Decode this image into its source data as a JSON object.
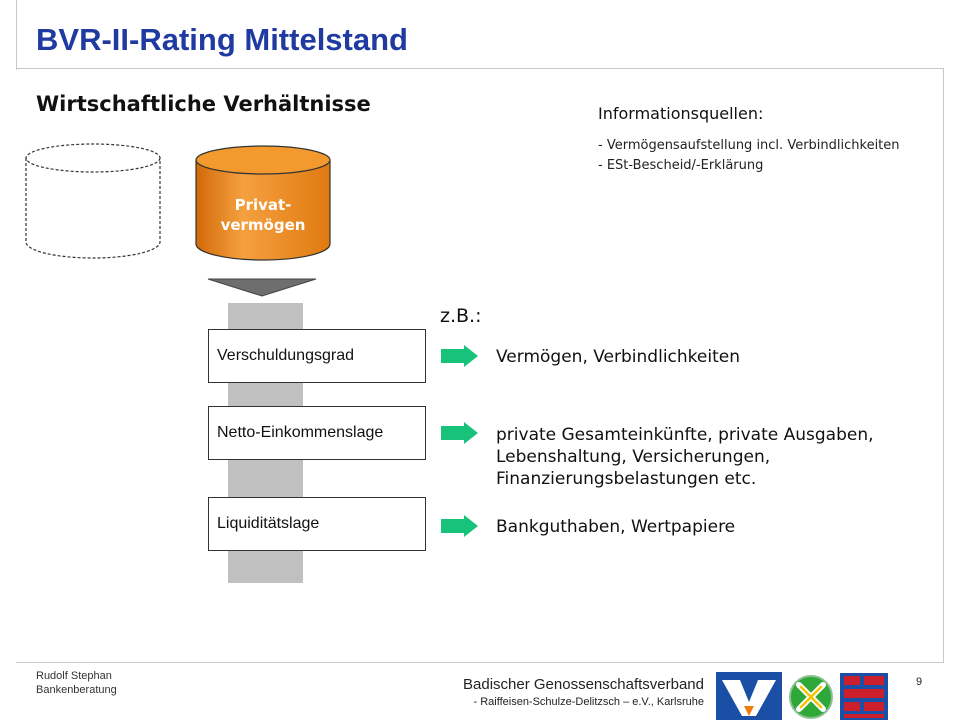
{
  "slide": {
    "title": "BVR-II-Rating Mittelstand",
    "subtitle": "Wirtschaftliche Verhältnisse",
    "page_number": "9"
  },
  "info": {
    "heading": "Informationsquellen:",
    "lines": [
      "- Vermögensaufstellung incl. Verbindlichkeiten",
      "- ESt-Bescheid/-Erklärung"
    ]
  },
  "cylinder": {
    "label_line1": "Privat-",
    "label_line2": "vermögen",
    "fill_color": "#f08c1e"
  },
  "example_label": "z.B.:",
  "rows": [
    {
      "label": "Verschuldungsgrad",
      "lines": [
        "Vermögen, Verbindlichkeiten"
      ]
    },
    {
      "label": "Netto-Einkommenslage",
      "lines": [
        "private Gesamteinkünfte, private Ausgaben,",
        "Lebenshaltung, Versicherungen,",
        "Finanzierungsbelastungen etc."
      ]
    },
    {
      "label": "Liquiditätslage",
      "lines": [
        "Bankguthaben, Wertpapiere"
      ]
    }
  ],
  "footer": {
    "author": "Rudolf Stephan",
    "department": "Bankenberatung",
    "org_line1": "Badischer  Genossenschaftsverband",
    "org_line2": "- Raiffeisen-Schulze-Delitzsch – e.V., Karlsruhe"
  },
  "colors": {
    "title": "#1f3aa0",
    "arrow": "#17c27a",
    "logo_blue": "#1b4fa5",
    "logo_orange": "#f07c10",
    "logo_green": "#2fa83a",
    "logo_red": "#cc1f2e"
  }
}
